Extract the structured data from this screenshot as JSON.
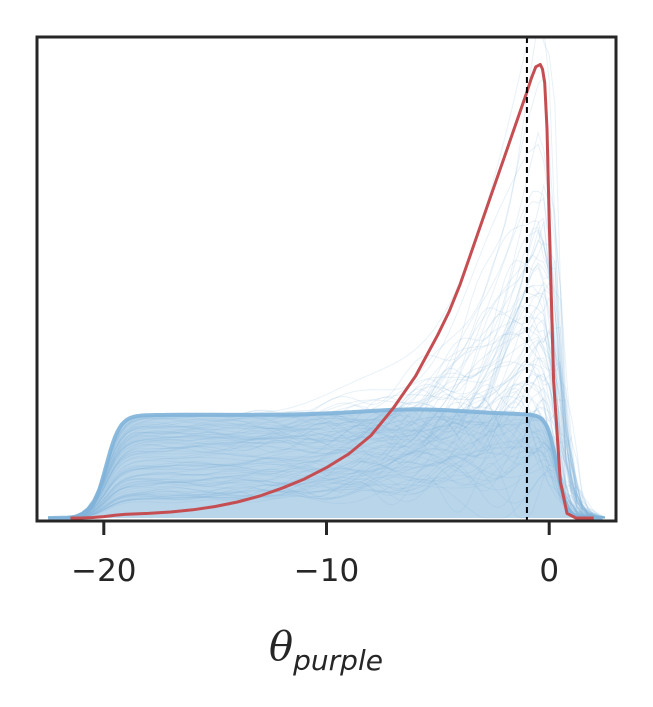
{
  "chart_data": {
    "type": "line",
    "title": "",
    "xlabel_symbol": "θ",
    "xlabel_subscript": "purple",
    "ylabel": "",
    "xlim": [
      -23,
      3
    ],
    "ylim": [
      0,
      1.05
    ],
    "xticks": [
      -20,
      -10,
      0
    ],
    "xtick_labels": [
      "−20",
      "−10",
      "0"
    ],
    "grid": false,
    "legend": "none",
    "reference_line": {
      "x": -1,
      "style": "dashed",
      "color": "#000000"
    },
    "colors": {
      "posterior_samples": "#7fb2d9",
      "prior": "#c44e52",
      "frame": "#262626"
    },
    "series": [
      {
        "x": [
          -21.5,
          -21,
          -20.5,
          -20,
          -19.5,
          -19,
          -18,
          -17,
          -16,
          -15,
          -14,
          -13,
          -12,
          -11,
          -10,
          -9,
          -8,
          -7,
          -6,
          -5,
          -4.5,
          -4,
          -3.5,
          -3,
          -2.5,
          -2,
          -1.5,
          -1,
          -0.8,
          -0.6,
          -0.4,
          -0.3,
          -0.2,
          -0.1,
          0,
          0.2,
          0.5,
          0.8,
          1.2,
          2
        ],
        "y": [
          0,
          0,
          0.001,
          0.003,
          0.006,
          0.008,
          0.01,
          0.013,
          0.018,
          0.025,
          0.035,
          0.048,
          0.065,
          0.085,
          0.11,
          0.14,
          0.18,
          0.24,
          0.31,
          0.4,
          0.45,
          0.51,
          0.58,
          0.65,
          0.72,
          0.79,
          0.86,
          0.93,
          0.96,
          0.985,
          0.99,
          0.98,
          0.95,
          0.85,
          0.65,
          0.3,
          0.08,
          0.01,
          0,
          0
        ]
      }
    ],
    "sample_band": {
      "count": 500,
      "plateau_x": [
        -19,
        -1
      ],
      "plateau_y_upper": 0.225,
      "plateau_y_lower": 0.0,
      "rise_start_x": -21.5,
      "fall_end_x": 1.5
    }
  }
}
